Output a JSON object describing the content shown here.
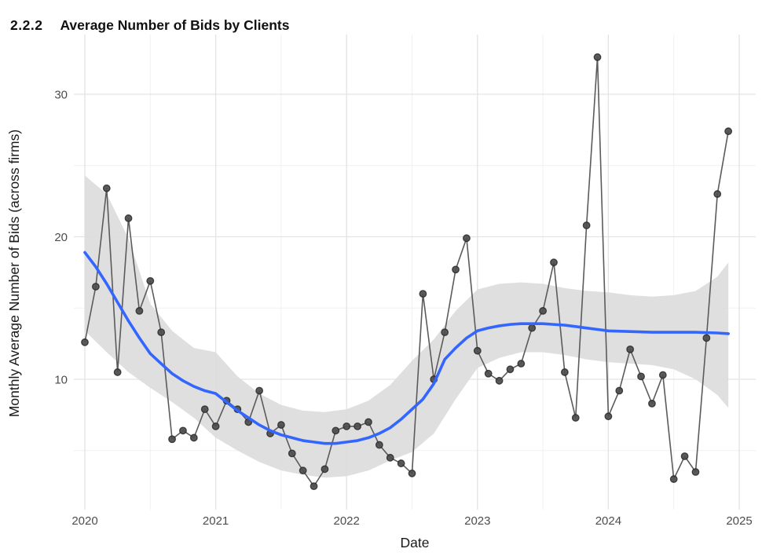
{
  "page": {
    "title_section": "2.2.2",
    "title_text": "Average Number of Bids by Clients"
  },
  "chart_data": {
    "type": "line",
    "title": "2.2.2 Average Number of Bids by Clients",
    "xlabel": "Date",
    "ylabel": "Monthly Average Number of Bids (across firms)",
    "x_tick_labels": [
      "2020",
      "2021",
      "2022",
      "2023",
      "2024",
      "2025"
    ],
    "x_tick_years": [
      2020,
      2021,
      2022,
      2023,
      2024,
      2025
    ],
    "x_minor_years": [
      2020.5,
      2021.5,
      2022.5,
      2023.5,
      2024.5
    ],
    "y_tick_values": [
      10,
      20,
      30
    ],
    "y_minor_values": [
      5,
      15,
      25
    ],
    "ylim": [
      0.8,
      34.2
    ],
    "xlim": [
      2019.92,
      2025.13
    ],
    "grid": "major and minor, light gray on white, no legend",
    "frequency": "monthly",
    "start": "2020-01",
    "end": "2024-12",
    "series": [
      {
        "name": "monthly average bids (points + gray line)",
        "values": [
          12.6,
          16.5,
          23.4,
          10.5,
          21.3,
          14.8,
          16.9,
          13.3,
          5.8,
          6.4,
          5.9,
          7.9,
          6.7,
          8.5,
          7.9,
          7.0,
          9.2,
          6.2,
          6.8,
          4.8,
          3.6,
          2.5,
          3.7,
          6.4,
          6.7,
          6.7,
          7.0,
          5.4,
          4.5,
          4.1,
          3.4,
          16.0,
          10.0,
          13.3,
          17.7,
          19.9,
          12.0,
          10.4,
          9.9,
          10.7,
          11.1,
          13.6,
          14.8,
          18.2,
          10.5,
          7.3,
          20.8,
          32.6,
          7.4,
          9.2,
          12.1,
          10.2,
          8.3,
          10.3,
          3.0,
          4.6,
          3.5,
          12.9,
          23.0,
          27.4
        ]
      }
    ],
    "smooth": {
      "name": "loess trend line",
      "color": "#3366FF",
      "x": [
        2020.0,
        2020.083,
        2020.167,
        2020.25,
        2020.333,
        2020.417,
        2020.5,
        2020.583,
        2020.667,
        2020.75,
        2020.833,
        2020.917,
        2021.0,
        2021.083,
        2021.167,
        2021.25,
        2021.333,
        2021.417,
        2021.5,
        2021.583,
        2021.667,
        2021.75,
        2021.833,
        2021.917,
        2022.0,
        2022.083,
        2022.167,
        2022.25,
        2022.333,
        2022.417,
        2022.5,
        2022.583,
        2022.667,
        2022.75,
        2022.833,
        2022.917,
        2023.0,
        2023.083,
        2023.167,
        2023.25,
        2023.333,
        2023.417,
        2023.5,
        2023.583,
        2023.667,
        2023.75,
        2023.833,
        2023.917,
        2024.0,
        2024.167,
        2024.333,
        2024.5,
        2024.667,
        2024.833,
        2024.917
      ],
      "y": [
        18.9,
        17.9,
        16.7,
        15.4,
        14.1,
        12.9,
        11.8,
        11.1,
        10.4,
        9.9,
        9.5,
        9.2,
        9.0,
        8.4,
        7.8,
        7.3,
        6.8,
        6.4,
        6.1,
        5.9,
        5.7,
        5.6,
        5.5,
        5.5,
        5.6,
        5.7,
        5.9,
        6.2,
        6.6,
        7.2,
        7.9,
        8.6,
        9.7,
        11.4,
        12.2,
        12.9,
        13.4,
        13.6,
        13.75,
        13.85,
        13.9,
        13.9,
        13.9,
        13.85,
        13.8,
        13.7,
        13.6,
        13.5,
        13.4,
        13.35,
        13.3,
        13.3,
        13.3,
        13.25,
        13.2
      ]
    },
    "ribbon": {
      "name": "confidence band",
      "color": "#dbdbdb",
      "x": [
        2020.0,
        2020.167,
        2020.333,
        2020.5,
        2020.667,
        2020.833,
        2021.0,
        2021.167,
        2021.333,
        2021.5,
        2021.667,
        2021.833,
        2022.0,
        2022.167,
        2022.333,
        2022.5,
        2022.667,
        2022.833,
        2023.0,
        2023.167,
        2023.333,
        2023.5,
        2023.667,
        2023.833,
        2024.0,
        2024.167,
        2024.333,
        2024.5,
        2024.667,
        2024.833,
        2024.917
      ],
      "upper": [
        24.3,
        23.0,
        19.9,
        15.3,
        13.4,
        12.2,
        11.9,
        10.2,
        9.0,
        8.2,
        7.8,
        7.7,
        7.9,
        8.5,
        9.6,
        11.3,
        12.8,
        14.8,
        16.3,
        16.7,
        16.8,
        16.7,
        16.4,
        16.2,
        16.1,
        15.9,
        15.8,
        15.9,
        16.2,
        17.2,
        18.2
      ],
      "lower": [
        13.4,
        11.9,
        10.5,
        9.4,
        8.4,
        7.3,
        5.9,
        5.0,
        4.2,
        3.6,
        3.3,
        3.1,
        3.2,
        3.6,
        4.3,
        4.9,
        6.2,
        8.6,
        10.8,
        11.5,
        11.9,
        11.9,
        11.7,
        11.4,
        11.2,
        11.1,
        11.0,
        10.7,
        10.0,
        8.9,
        8.0
      ]
    },
    "colors": {
      "point_fill": "#4d4d4d",
      "point_stroke": "#2a2a2a",
      "series_line": "#5b5b5b",
      "smooth_line": "#3366FF",
      "ribbon_fill": "#dbdbdb",
      "grid_major": "#e3e3e3",
      "grid_minor": "#f1f1f1",
      "tick_text": "#4d4d4d",
      "axis_title_text": "#1a1a1a"
    }
  }
}
